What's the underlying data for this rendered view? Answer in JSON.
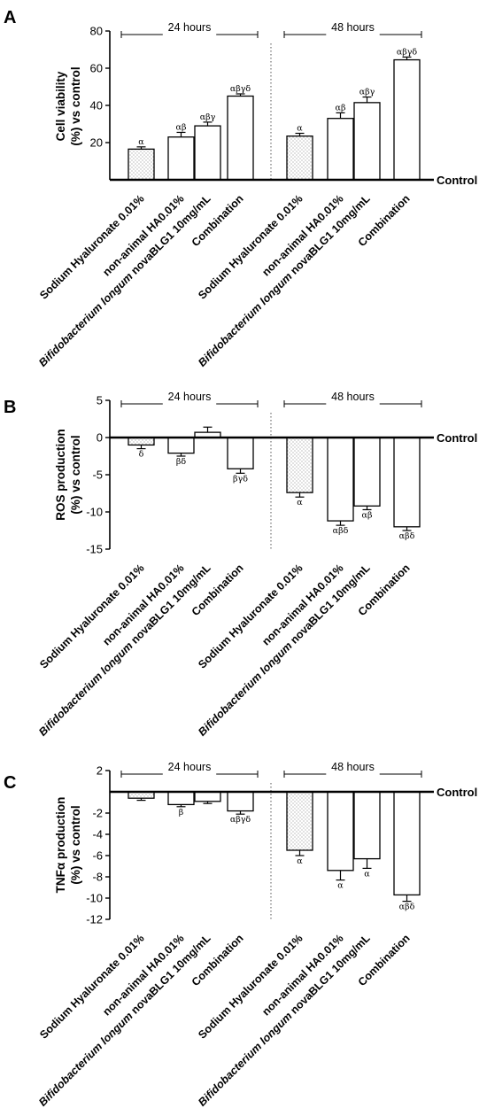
{
  "colors": {
    "line": "#000000",
    "bar_fill": "#ffffff",
    "dotted_fill": "#d9d9d9"
  },
  "categories": [
    {
      "italic": "",
      "rest": "Sodium Hyaluronate 0.01%"
    },
    {
      "italic": "",
      "rest": "non-animal HA0.01%"
    },
    {
      "italic": "Bifidobacterium longum",
      "rest": " novaBLG1 10mg/mL"
    },
    {
      "italic": "",
      "rest": "Combination"
    }
  ],
  "periods": [
    "24 hours",
    "48 hours"
  ],
  "control_label": "Control",
  "chart_data": [
    {
      "panel": "A",
      "type": "bar",
      "ylabel_lines": [
        "Cell viability",
        "(%) vs control"
      ],
      "ylim": [
        0,
        80
      ],
      "yticks": [
        20,
        40,
        60,
        80
      ],
      "series": [
        {
          "period": "24 hours",
          "values": [
            16.5,
            23,
            29,
            45
          ],
          "errors": [
            1.2,
            2.5,
            2,
            1.2
          ],
          "labels": [
            "α",
            "αβ",
            "αβγ",
            "αβγδ"
          ]
        },
        {
          "period": "48 hours",
          "values": [
            23.5,
            33,
            41.5,
            64.5
          ],
          "errors": [
            1.5,
            3,
            3,
            1.5
          ],
          "labels": [
            "α",
            "αβ",
            "αβγ",
            "αβγδ"
          ]
        }
      ]
    },
    {
      "panel": "B",
      "type": "bar",
      "ylabel_lines": [
        "ROS production",
        "(%) vs control"
      ],
      "ylim": [
        -15,
        5
      ],
      "yticks": [
        5,
        0,
        -5,
        -10,
        -15
      ],
      "series": [
        {
          "period": "24 hours",
          "values": [
            -1,
            -2.1,
            0.7,
            -4.2
          ],
          "errors": [
            0.5,
            0.4,
            0.7,
            0.6
          ],
          "labels": [
            "δ",
            "βδ",
            "",
            "βγδ"
          ]
        },
        {
          "period": "48 hours",
          "values": [
            -7.4,
            -11.2,
            -9.2,
            -12
          ],
          "errors": [
            0.6,
            0.6,
            0.5,
            0.5
          ],
          "labels": [
            "α",
            "αβδ",
            "αβ",
            "αβδ"
          ]
        }
      ]
    },
    {
      "panel": "C",
      "type": "bar",
      "ylabel_lines": [
        "TNFα production",
        "(%) vs control"
      ],
      "ylim": [
        -12,
        2
      ],
      "yticks": [
        2,
        -2,
        -4,
        -6,
        -8,
        -10,
        -12
      ],
      "series": [
        {
          "period": "24 hours",
          "values": [
            -0.6,
            -1.2,
            -0.9,
            -1.8
          ],
          "errors": [
            0.2,
            0.2,
            0.2,
            0.3
          ],
          "labels": [
            "",
            "β",
            "",
            "αβγδ"
          ]
        },
        {
          "period": "48 hours",
          "values": [
            -5.5,
            -7.4,
            -6.3,
            -9.7
          ],
          "errors": [
            0.5,
            0.9,
            0.9,
            0.6
          ],
          "labels": [
            "α",
            "α",
            "α",
            "αβδ"
          ]
        }
      ]
    }
  ]
}
